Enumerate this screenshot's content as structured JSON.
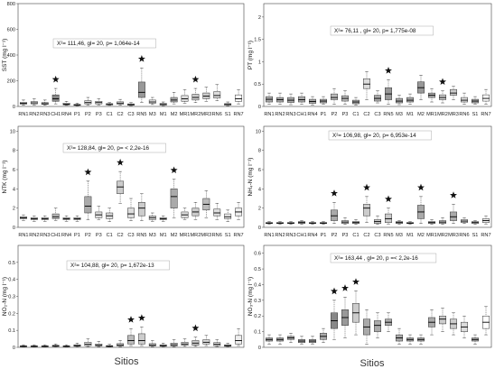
{
  "xlabel": "Sitios",
  "chart_data": [
    {
      "type": "boxplot",
      "ylabel": "SST (mg l⁻¹)",
      "ylim": [
        0,
        800
      ],
      "yticks": [
        0,
        200,
        400,
        600,
        800
      ],
      "annotation": "X²= 111,46, gl= 20, p= 1,064e-14",
      "categories": [
        "RN1",
        "RN2",
        "RN3",
        "CH1",
        "RN4",
        "P1",
        "P2",
        "P3",
        "C1",
        "C2",
        "C3",
        "RN5",
        "M3",
        "M1",
        "M2",
        "MR1",
        "MR2",
        "MR3",
        "RN6",
        "S1",
        "RN7"
      ],
      "boxes": [
        [
          10,
          18,
          24,
          32,
          50
        ],
        [
          12,
          20,
          28,
          38,
          60
        ],
        [
          10,
          16,
          22,
          30,
          50
        ],
        [
          20,
          40,
          60,
          90,
          140
        ],
        [
          8,
          12,
          18,
          26,
          40
        ],
        [
          5,
          8,
          12,
          16,
          25
        ],
        [
          10,
          20,
          30,
          45,
          70
        ],
        [
          12,
          20,
          30,
          40,
          60
        ],
        [
          8,
          12,
          16,
          22,
          30
        ],
        [
          10,
          18,
          26,
          36,
          55
        ],
        [
          6,
          10,
          14,
          20,
          30
        ],
        [
          30,
          70,
          110,
          190,
          300
        ],
        [
          15,
          25,
          35,
          50,
          70
        ],
        [
          6,
          10,
          16,
          24,
          35
        ],
        [
          20,
          35,
          50,
          70,
          110
        ],
        [
          25,
          40,
          60,
          85,
          130
        ],
        [
          30,
          50,
          70,
          95,
          140
        ],
        [
          40,
          60,
          80,
          105,
          150
        ],
        [
          45,
          65,
          85,
          115,
          170
        ],
        [
          5,
          10,
          16,
          22,
          35
        ],
        [
          20,
          40,
          60,
          90,
          130
        ]
      ],
      "stars": [
        "CH1",
        "RN5",
        "MR2"
      ]
    },
    {
      "type": "boxplot",
      "ylabel": "PT (mg l⁻¹)",
      "ylim": [
        0,
        2.3
      ],
      "yticks": [
        0,
        0.5,
        1.0,
        1.5,
        2.0
      ],
      "annotation": "X²= 76,11 , gl= 20, p= 1,775e-08",
      "categories": [
        "RN1",
        "RN2",
        "RN3",
        "CH1",
        "RN4",
        "P1",
        "P2",
        "P3",
        "C1",
        "C2",
        "C3",
        "RN5",
        "M3",
        "M1",
        "M2",
        "MR1",
        "MR2",
        "MR3",
        "RN6",
        "S1",
        "RN7"
      ],
      "boxes": [
        [
          0.05,
          0.1,
          0.16,
          0.22,
          0.3
        ],
        [
          0.05,
          0.1,
          0.15,
          0.2,
          0.3
        ],
        [
          0.04,
          0.09,
          0.14,
          0.2,
          0.28
        ],
        [
          0.05,
          0.1,
          0.15,
          0.22,
          0.3
        ],
        [
          0.03,
          0.07,
          0.11,
          0.16,
          0.22
        ],
        [
          0.05,
          0.08,
          0.12,
          0.16,
          0.22
        ],
        [
          0.05,
          0.15,
          0.2,
          0.28,
          0.4
        ],
        [
          0.05,
          0.12,
          0.18,
          0.24,
          0.35
        ],
        [
          0.03,
          0.06,
          0.1,
          0.14,
          0.2
        ],
        [
          0.15,
          0.4,
          0.5,
          0.62,
          0.78
        ],
        [
          0.08,
          0.12,
          0.18,
          0.25,
          0.35
        ],
        [
          0.05,
          0.15,
          0.28,
          0.42,
          0.6
        ],
        [
          0.04,
          0.08,
          0.12,
          0.18,
          0.25
        ],
        [
          0.05,
          0.1,
          0.14,
          0.2,
          0.28
        ],
        [
          0.15,
          0.3,
          0.42,
          0.55,
          0.7
        ],
        [
          0.1,
          0.2,
          0.25,
          0.3,
          0.4
        ],
        [
          0.08,
          0.15,
          0.2,
          0.26,
          0.35
        ],
        [
          0.15,
          0.25,
          0.3,
          0.38,
          0.45
        ],
        [
          0.05,
          0.1,
          0.14,
          0.2,
          0.3
        ],
        [
          0.05,
          0.08,
          0.12,
          0.16,
          0.22
        ],
        [
          0.05,
          0.12,
          0.18,
          0.26,
          0.38
        ]
      ],
      "stars": [
        "RN5",
        "MR2"
      ]
    },
    {
      "type": "boxplot",
      "ylabel": "NTK (mg l⁻¹)",
      "ylim": [
        0,
        10.5
      ],
      "yticks": [
        0,
        2,
        4,
        6,
        8,
        10
      ],
      "annotation": "X²= 128,84, gl= 20, p= < 2,2e-16",
      "categories": [
        "RN1",
        "RN2",
        "RN3",
        "CH1",
        "RN4",
        "P1",
        "P2",
        "P3",
        "C1",
        "C2",
        "C3",
        "RN5",
        "M3",
        "M1",
        "M2",
        "MR1",
        "MR2",
        "MR3",
        "RN6",
        "S1",
        "RN7"
      ],
      "boxes": [
        [
          0.7,
          0.9,
          1.0,
          1.1,
          1.3
        ],
        [
          0.6,
          0.8,
          0.9,
          1.0,
          1.2
        ],
        [
          0.6,
          0.8,
          0.9,
          1.0,
          1.2
        ],
        [
          0.7,
          0.9,
          1.1,
          1.4,
          2.0
        ],
        [
          0.6,
          0.8,
          0.9,
          1.0,
          1.2
        ],
        [
          0.6,
          0.8,
          0.9,
          1.0,
          1.2
        ],
        [
          0.8,
          1.5,
          2.2,
          3.2,
          4.8
        ],
        [
          0.8,
          1.0,
          1.3,
          1.6,
          2.2
        ],
        [
          0.6,
          0.9,
          1.2,
          1.5,
          2.0
        ],
        [
          2.5,
          3.5,
          4.2,
          4.8,
          5.8
        ],
        [
          0.7,
          1.0,
          1.4,
          2.0,
          3.0
        ],
        [
          0.7,
          1.2,
          2.0,
          2.6,
          3.5
        ],
        [
          0.6,
          0.8,
          1.0,
          1.2,
          1.5
        ],
        [
          0.6,
          0.8,
          0.9,
          1.0,
          1.2
        ],
        [
          1.0,
          2.0,
          3.2,
          4.0,
          5.0
        ],
        [
          0.8,
          1.0,
          1.3,
          1.6,
          2.0
        ],
        [
          0.8,
          1.2,
          1.6,
          2.0,
          2.6
        ],
        [
          1.0,
          1.8,
          2.4,
          3.0,
          3.8
        ],
        [
          0.8,
          1.2,
          1.5,
          1.9,
          2.5
        ],
        [
          0.6,
          0.9,
          1.1,
          1.4,
          1.8
        ],
        [
          0.8,
          1.2,
          1.6,
          2.0,
          2.6
        ]
      ],
      "stars": [
        "P2",
        "C2",
        "M2"
      ]
    },
    {
      "type": "boxplot",
      "ylabel": "NH₄-N (mg l⁻¹)",
      "ylim": [
        0,
        10.5
      ],
      "yticks": [
        0,
        2,
        4,
        6,
        8,
        10
      ],
      "annotation": "X²= 106,98, gl= 20, p= 6,953e-14",
      "categories": [
        "RN1",
        "RN2",
        "RN3",
        "CH1",
        "RN4",
        "P1",
        "P2",
        "P3",
        "C1",
        "C2",
        "C3",
        "RN5",
        "M3",
        "M1",
        "M2",
        "MR1",
        "MR2",
        "MR3",
        "RN6",
        "S1",
        "RN7"
      ],
      "boxes": [
        [
          0.3,
          0.4,
          0.45,
          0.5,
          0.6
        ],
        [
          0.3,
          0.4,
          0.45,
          0.5,
          0.6
        ],
        [
          0.3,
          0.4,
          0.45,
          0.5,
          0.6
        ],
        [
          0.3,
          0.4,
          0.5,
          0.6,
          0.7
        ],
        [
          0.3,
          0.4,
          0.45,
          0.5,
          0.6
        ],
        [
          0.3,
          0.4,
          0.45,
          0.5,
          0.6
        ],
        [
          0.4,
          0.7,
          1.2,
          1.8,
          2.6
        ],
        [
          0.3,
          0.4,
          0.55,
          0.7,
          1.0
        ],
        [
          0.3,
          0.4,
          0.5,
          0.6,
          0.8
        ],
        [
          0.5,
          1.2,
          2.0,
          2.4,
          3.2
        ],
        [
          0.3,
          0.4,
          0.6,
          0.8,
          1.2
        ],
        [
          0.3,
          0.5,
          0.9,
          1.4,
          2.0
        ],
        [
          0.3,
          0.4,
          0.5,
          0.6,
          0.7
        ],
        [
          0.3,
          0.4,
          0.45,
          0.5,
          0.6
        ],
        [
          0.4,
          0.9,
          1.6,
          2.3,
          3.2
        ],
        [
          0.3,
          0.4,
          0.5,
          0.6,
          0.8
        ],
        [
          0.3,
          0.4,
          0.55,
          0.7,
          1.0
        ],
        [
          0.4,
          0.7,
          1.1,
          1.6,
          2.4
        ],
        [
          0.4,
          0.5,
          0.65,
          0.8,
          1.0
        ],
        [
          0.3,
          0.4,
          0.5,
          0.6,
          0.7
        ],
        [
          0.3,
          0.5,
          0.7,
          0.9,
          1.2
        ]
      ],
      "stars": [
        "P2",
        "C2",
        "RN5",
        "M2",
        "MR3"
      ]
    },
    {
      "type": "boxplot",
      "ylabel": "NO₂-N (mg l⁻¹)",
      "ylim": [
        0,
        0.6
      ],
      "yticks": [
        0,
        0.1,
        0.2,
        0.3,
        0.4,
        0.5
      ],
      "annotation": "X²= 104,88, gl= 20, p= 1,672e-13",
      "categories": [
        "RN1",
        "RN2",
        "RN3",
        "CH1",
        "RN4",
        "P1",
        "P2",
        "P3",
        "C1",
        "C2",
        "C3",
        "RN5",
        "M3",
        "M1",
        "M2",
        "MR1",
        "MR2",
        "MR3",
        "RN6",
        "S1",
        "RN7"
      ],
      "boxes": [
        [
          0.002,
          0.004,
          0.006,
          0.009,
          0.015
        ],
        [
          0.002,
          0.004,
          0.006,
          0.009,
          0.015
        ],
        [
          0.002,
          0.004,
          0.006,
          0.009,
          0.015
        ],
        [
          0.002,
          0.005,
          0.008,
          0.012,
          0.02
        ],
        [
          0.002,
          0.004,
          0.006,
          0.009,
          0.015
        ],
        [
          0.003,
          0.006,
          0.01,
          0.015,
          0.025
        ],
        [
          0.005,
          0.01,
          0.018,
          0.03,
          0.05
        ],
        [
          0.004,
          0.008,
          0.012,
          0.02,
          0.035
        ],
        [
          0.002,
          0.004,
          0.007,
          0.01,
          0.018
        ],
        [
          0.004,
          0.008,
          0.014,
          0.022,
          0.04
        ],
        [
          0.01,
          0.02,
          0.04,
          0.07,
          0.11
        ],
        [
          0.01,
          0.02,
          0.04,
          0.08,
          0.12
        ],
        [
          0.004,
          0.008,
          0.014,
          0.022,
          0.04
        ],
        [
          0.003,
          0.006,
          0.01,
          0.015,
          0.025
        ],
        [
          0.004,
          0.008,
          0.015,
          0.025,
          0.045
        ],
        [
          0.006,
          0.012,
          0.02,
          0.03,
          0.05
        ],
        [
          0.006,
          0.012,
          0.025,
          0.04,
          0.06
        ],
        [
          0.01,
          0.02,
          0.03,
          0.045,
          0.07
        ],
        [
          0.005,
          0.01,
          0.018,
          0.028,
          0.045
        ],
        [
          0.003,
          0.006,
          0.01,
          0.015,
          0.025
        ],
        [
          0.01,
          0.02,
          0.04,
          0.07,
          0.11
        ]
      ],
      "stars": [
        "C3",
        "RN5",
        "MR2"
      ]
    },
    {
      "type": "boxplot",
      "ylabel": "NO₃-N (mg l⁻¹)",
      "ylim": [
        0,
        0.65
      ],
      "yticks": [
        0,
        0.1,
        0.2,
        0.3,
        0.4,
        0.5,
        0.6
      ],
      "annotation": "X²= 163,44 , gl= 20, p =< 2,2e-16",
      "categories": [
        "RN1",
        "RN2",
        "RN3",
        "CH1",
        "RN4",
        "P1",
        "P2",
        "P3",
        "C1",
        "C2",
        "C3",
        "RN5",
        "M3",
        "M1",
        "M2",
        "MR1",
        "MR2",
        "MR3",
        "RN6",
        "S1",
        "RN7"
      ],
      "boxes": [
        [
          0.02,
          0.04,
          0.05,
          0.06,
          0.08
        ],
        [
          0.02,
          0.04,
          0.05,
          0.06,
          0.08
        ],
        [
          0.03,
          0.05,
          0.06,
          0.07,
          0.09
        ],
        [
          0.02,
          0.03,
          0.04,
          0.05,
          0.07
        ],
        [
          0.02,
          0.03,
          0.04,
          0.05,
          0.07
        ],
        [
          0.03,
          0.05,
          0.07,
          0.09,
          0.12
        ],
        [
          0.05,
          0.12,
          0.17,
          0.22,
          0.3
        ],
        [
          0.06,
          0.14,
          0.19,
          0.24,
          0.32
        ],
        [
          0.08,
          0.16,
          0.22,
          0.28,
          0.36
        ],
        [
          0.02,
          0.08,
          0.13,
          0.18,
          0.24
        ],
        [
          0.06,
          0.1,
          0.14,
          0.17,
          0.22
        ],
        [
          0.1,
          0.14,
          0.16,
          0.18,
          0.22
        ],
        [
          0.02,
          0.04,
          0.06,
          0.08,
          0.12
        ],
        [
          0.02,
          0.04,
          0.05,
          0.06,
          0.08
        ],
        [
          0.02,
          0.04,
          0.05,
          0.06,
          0.08
        ],
        [
          0.08,
          0.13,
          0.16,
          0.19,
          0.24
        ],
        [
          0.1,
          0.15,
          0.18,
          0.2,
          0.25
        ],
        [
          0.08,
          0.12,
          0.15,
          0.18,
          0.22
        ],
        [
          0.06,
          0.1,
          0.13,
          0.16,
          0.2
        ],
        [
          0.02,
          0.04,
          0.05,
          0.06,
          0.08
        ],
        [
          0.08,
          0.12,
          0.16,
          0.2,
          0.26
        ]
      ],
      "stars": [
        "P2",
        "P3",
        "C1"
      ]
    }
  ]
}
